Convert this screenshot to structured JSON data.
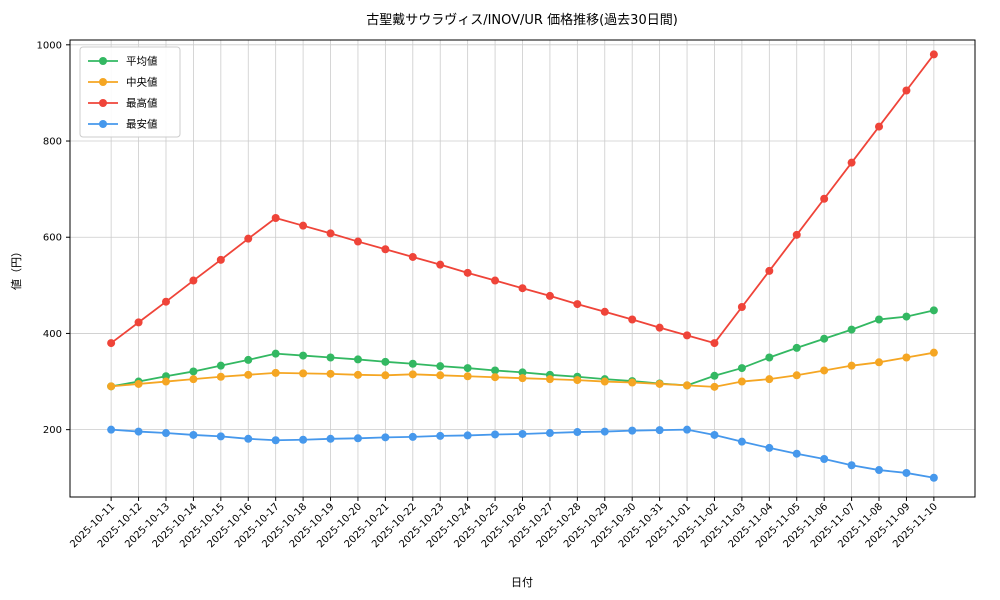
{
  "chart_data": {
    "type": "line",
    "title": "古聖戴サウラヴィス/INOV/UR 価格推移(過去30日間)",
    "xlabel": "日付",
    "ylabel": "値（円）",
    "grid": true,
    "legend_position": "upper-left",
    "marker": "circle",
    "ylim": [
      60,
      1010
    ],
    "yticks": [
      200,
      400,
      600,
      800,
      1000
    ],
    "x": [
      "2025-10-11",
      "2025-10-12",
      "2025-10-13",
      "2025-10-14",
      "2025-10-15",
      "2025-10-16",
      "2025-10-17",
      "2025-10-18",
      "2025-10-19",
      "2025-10-20",
      "2025-10-21",
      "2025-10-22",
      "2025-10-23",
      "2025-10-24",
      "2025-10-25",
      "2025-10-26",
      "2025-10-27",
      "2025-10-28",
      "2025-10-29",
      "2025-10-30",
      "2025-10-31",
      "2025-11-01",
      "2025-11-02",
      "2025-11-03",
      "2025-11-04",
      "2025-11-05",
      "2025-11-06",
      "2025-11-07",
      "2025-11-08",
      "2025-11-09",
      "2025-11-10"
    ],
    "series": [
      {
        "name": "平均値",
        "color": "#33b862",
        "values": [
          290,
          300,
          311,
          321,
          333,
          345,
          358,
          354,
          350,
          346,
          341,
          337,
          332,
          328,
          323,
          319,
          314,
          310,
          305,
          301,
          296,
          292,
          312,
          328,
          350,
          370,
          389,
          408,
          429,
          435,
          448
        ]
      },
      {
        "name": "中央値",
        "color": "#f5a623",
        "values": [
          290,
          295,
          300,
          305,
          310,
          314,
          318,
          317,
          316,
          314,
          313,
          315,
          313,
          311,
          309,
          307,
          305,
          303,
          300,
          298,
          295,
          292,
          289,
          300,
          305,
          313,
          323,
          333,
          340,
          350,
          360
        ]
      },
      {
        "name": "最高値",
        "color": "#ef4439",
        "values": [
          380,
          423,
          466,
          510,
          553,
          597,
          640,
          624,
          608,
          591,
          575,
          559,
          543,
          526,
          510,
          494,
          478,
          461,
          445,
          429,
          412,
          396,
          380,
          455,
          530,
          605,
          680,
          755,
          830,
          905,
          980
        ]
      },
      {
        "name": "最安値",
        "color": "#4698ec",
        "values": [
          200,
          196,
          193,
          189,
          186,
          181,
          178,
          179,
          181,
          182,
          184,
          185,
          187,
          188,
          190,
          191,
          193,
          195,
          196,
          198,
          199,
          200,
          189,
          175,
          162,
          150,
          139,
          126,
          116,
          110,
          100
        ]
      }
    ]
  }
}
